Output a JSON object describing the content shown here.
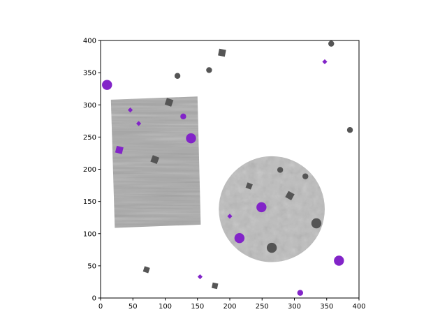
{
  "chart_data": {
    "type": "scatter",
    "title": "",
    "xlabel": "",
    "ylabel": "",
    "xlim": [
      0,
      400
    ],
    "ylim": [
      0,
      400
    ],
    "xticks": [
      "0",
      "50",
      "100",
      "150",
      "200",
      "250",
      "300",
      "350",
      "400"
    ],
    "yticks": [
      "0",
      "50",
      "100",
      "150",
      "200",
      "250",
      "300",
      "350",
      "400"
    ],
    "grid": false,
    "colors": {
      "purple": "#8224c8",
      "gray": "#555555"
    },
    "background_images": [
      {
        "kind": "rotated-rectangle-texture",
        "corners": [
          [
            16,
            308
          ],
          [
            150,
            313
          ],
          [
            155,
            114
          ],
          [
            22,
            109
          ]
        ],
        "fill": "#a9a9a9"
      },
      {
        "kind": "circle-texture",
        "center": [
          265,
          138
        ],
        "radius": 82,
        "fill": "#bdbdbd"
      }
    ],
    "points": [
      {
        "x": 10,
        "y": 331,
        "shape": "circle",
        "color": "purple",
        "size": "large"
      },
      {
        "x": 119,
        "y": 345,
        "shape": "circle",
        "color": "gray",
        "size": "small"
      },
      {
        "x": 168,
        "y": 354,
        "shape": "circle",
        "color": "gray",
        "size": "small"
      },
      {
        "x": 188,
        "y": 381,
        "shape": "square",
        "color": "gray",
        "size": "medium"
      },
      {
        "x": 357,
        "y": 395,
        "shape": "circle",
        "color": "gray",
        "size": "small"
      },
      {
        "x": 347,
        "y": 367,
        "shape": "diamond",
        "color": "purple",
        "size": "small"
      },
      {
        "x": 386,
        "y": 261,
        "shape": "circle",
        "color": "gray",
        "size": "small"
      },
      {
        "x": 106,
        "y": 304,
        "shape": "square",
        "color": "gray",
        "size": "medium"
      },
      {
        "x": 46,
        "y": 292,
        "shape": "diamond",
        "color": "purple",
        "size": "small"
      },
      {
        "x": 128,
        "y": 282,
        "shape": "circle",
        "color": "purple",
        "size": "small"
      },
      {
        "x": 59,
        "y": 271,
        "shape": "diamond",
        "color": "purple",
        "size": "small"
      },
      {
        "x": 140,
        "y": 248,
        "shape": "circle",
        "color": "purple",
        "size": "large"
      },
      {
        "x": 29,
        "y": 230,
        "shape": "square",
        "color": "purple",
        "size": "medium"
      },
      {
        "x": 84,
        "y": 215,
        "shape": "square",
        "color": "gray",
        "size": "medium"
      },
      {
        "x": 278,
        "y": 199,
        "shape": "circle",
        "color": "gray",
        "size": "small"
      },
      {
        "x": 317,
        "y": 189,
        "shape": "circle",
        "color": "gray",
        "size": "small"
      },
      {
        "x": 230,
        "y": 174,
        "shape": "square",
        "color": "gray",
        "size": "small"
      },
      {
        "x": 293,
        "y": 159,
        "shape": "square",
        "color": "gray",
        "size": "medium"
      },
      {
        "x": 249,
        "y": 141,
        "shape": "circle",
        "color": "purple",
        "size": "large"
      },
      {
        "x": 200,
        "y": 127,
        "shape": "diamond",
        "color": "purple",
        "size": "small"
      },
      {
        "x": 334,
        "y": 116,
        "shape": "circle",
        "color": "gray",
        "size": "large"
      },
      {
        "x": 215,
        "y": 93,
        "shape": "circle",
        "color": "purple",
        "size": "large"
      },
      {
        "x": 265,
        "y": 78,
        "shape": "circle",
        "color": "gray",
        "size": "large"
      },
      {
        "x": 369,
        "y": 58,
        "shape": "circle",
        "color": "purple",
        "size": "large"
      },
      {
        "x": 71,
        "y": 44,
        "shape": "square",
        "color": "gray",
        "size": "small"
      },
      {
        "x": 154,
        "y": 33,
        "shape": "diamond",
        "color": "purple",
        "size": "small"
      },
      {
        "x": 177,
        "y": 19,
        "shape": "square",
        "color": "gray",
        "size": "small"
      },
      {
        "x": 309,
        "y": 8,
        "shape": "circle",
        "color": "purple",
        "size": "small"
      }
    ]
  }
}
